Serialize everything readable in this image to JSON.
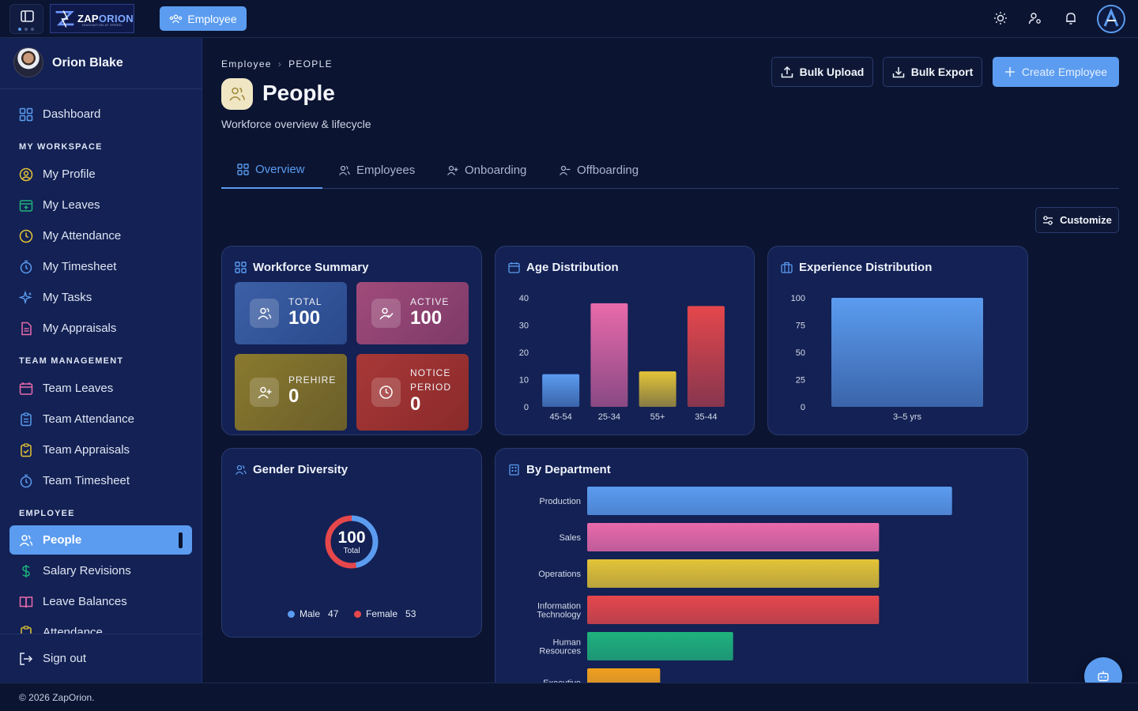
{
  "topbar": {
    "logo_main": "ZAP",
    "logo_accent": "ORION",
    "logo_tagline": "INNOVATION AT SPEED",
    "module_button": "Employee"
  },
  "user": {
    "name": "Orion Blake"
  },
  "sidebar": {
    "dashboard": "Dashboard",
    "sections": {
      "workspace": "MY WORKSPACE",
      "team": "TEAM MANAGEMENT",
      "employee": "EMPLOYEE"
    },
    "workspace_items": [
      {
        "label": "My Profile"
      },
      {
        "label": "My Leaves"
      },
      {
        "label": "My Attendance"
      },
      {
        "label": "My Timesheet"
      },
      {
        "label": "My Tasks"
      },
      {
        "label": "My Appraisals"
      }
    ],
    "team_items": [
      {
        "label": "Team Leaves"
      },
      {
        "label": "Team Attendance"
      },
      {
        "label": "Team Appraisals"
      },
      {
        "label": "Team Timesheet"
      }
    ],
    "employee_items": [
      {
        "label": "People"
      },
      {
        "label": "Salary Revisions"
      },
      {
        "label": "Leave Balances"
      },
      {
        "label": "Attendance"
      }
    ],
    "sign_out": "Sign out"
  },
  "footer": {
    "text": "© 2026 ZapOrion."
  },
  "page": {
    "breadcrumb_root": "Employee",
    "breadcrumb_current": "PEOPLE",
    "title": "People",
    "subtitle": "Workforce overview & lifecycle",
    "bulk_upload": "Bulk Upload",
    "bulk_export": "Bulk Export",
    "create": "Create Employee",
    "customize": "Customize"
  },
  "tabs": [
    {
      "label": "Overview"
    },
    {
      "label": "Employees"
    },
    {
      "label": "Onboarding"
    },
    {
      "label": "Offboarding"
    }
  ],
  "workforce_summary": {
    "title": "Workforce Summary",
    "tiles": [
      {
        "label": "TOTAL",
        "value": "100"
      },
      {
        "label": "ACTIVE",
        "value": "100"
      },
      {
        "label": "PREHIRE",
        "value": "0"
      },
      {
        "label_line1": "NOTICE",
        "label_line2": "PERIOD",
        "value": "0"
      }
    ]
  },
  "gender": {
    "title": "Gender Diversity",
    "center_value": "100",
    "center_label": "Total",
    "male_label": "Male",
    "male_value": "47",
    "female_label": "Female",
    "female_value": "53"
  },
  "colors": {
    "accent": "#5b9cf0",
    "pink": "#e96aab",
    "yellow": "#e3c437",
    "red": "#e5474b",
    "green": "#1fb27d",
    "orange": "#f0a020"
  },
  "chart_data": [
    {
      "type": "bar",
      "title": "Age Distribution",
      "categories": [
        "45-54",
        "25-34",
        "55+",
        "35-44"
      ],
      "values": [
        12,
        38,
        13,
        37
      ],
      "yticks": [
        0,
        10,
        20,
        30,
        40
      ],
      "ylim": [
        0,
        40
      ],
      "colors": [
        "#5b9cf0",
        "#e96aab",
        "#e3c437",
        "#e5474b"
      ]
    },
    {
      "type": "bar",
      "title": "Experience Distribution",
      "categories": [
        "3–5 yrs"
      ],
      "values": [
        100
      ],
      "yticks": [
        0,
        25,
        50,
        75,
        100
      ],
      "ylim": [
        0,
        100
      ],
      "colors": [
        "#5b9cf0"
      ]
    },
    {
      "type": "pie",
      "title": "Gender Diversity",
      "categories": [
        "Male",
        "Female"
      ],
      "values": [
        47,
        53
      ],
      "colors": [
        "#5b9cf0",
        "#e5474b"
      ]
    },
    {
      "type": "bar",
      "orientation": "horizontal",
      "title": "By Department",
      "categories": [
        [
          "Production"
        ],
        [
          "Sales"
        ],
        [
          "Operations"
        ],
        [
          "Information",
          "Technology"
        ],
        [
          "Human",
          "Resources"
        ],
        [
          "Executive"
        ]
      ],
      "values": [
        25,
        20,
        20,
        20,
        10,
        5
      ],
      "xlim": [
        0,
        30
      ],
      "colors": [
        "#5b9cf0",
        "#e96aab",
        "#e3c437",
        "#e5474b",
        "#1fb27d",
        "#f0a020"
      ]
    }
  ]
}
